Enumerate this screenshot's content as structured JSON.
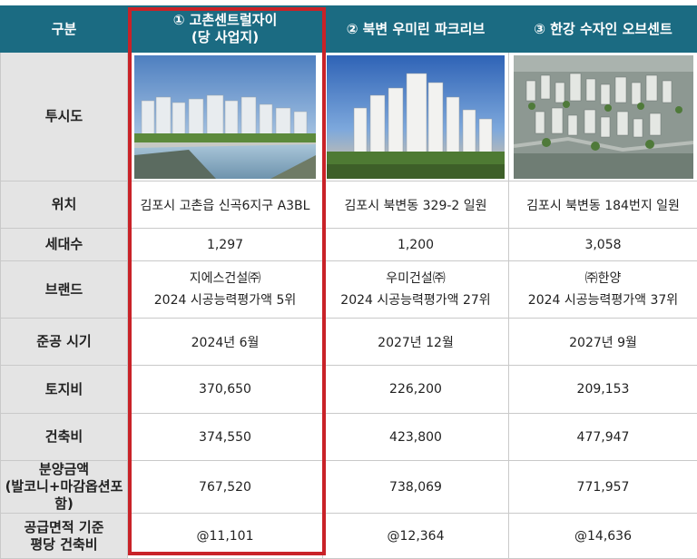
{
  "header": {
    "corner": "구분",
    "col1_line1": "① 고촌센트럴자이",
    "col1_line2": "(당 사업지)",
    "col2": "② 북변 우미린 파크리브",
    "col3": "③ 한강 수자인 오브센트"
  },
  "rows": {
    "render": {
      "label": "투시도"
    },
    "location": {
      "label": "위치",
      "v1": "김포시 고촌읍 신곡6지구 A3BL",
      "v2": "김포시 북변동 329-2 일원",
      "v3": "김포시 북변동 184번지 일원"
    },
    "households": {
      "label": "세대수",
      "v1": "1,297",
      "v2": "1,200",
      "v3": "3,058"
    },
    "brand": {
      "label": "브랜드",
      "v1_line1": "지에스건설㈜",
      "v1_line2": "2024 시공능력평가액 5위",
      "v2_line1": "우미건설㈜",
      "v2_line2": "2024 시공능력평가액 27위",
      "v3_line1": "㈜한양",
      "v3_line2": "2024 시공능력평가액 37위"
    },
    "completion": {
      "label": "준공 시기",
      "v1": "2024년 6월",
      "v2": "2027년 12월",
      "v3": "2027년 9월"
    },
    "land_cost": {
      "label": "토지비",
      "v1": "370,650",
      "v2": "226,200",
      "v3": "209,153"
    },
    "build_cost": {
      "label": "건축비",
      "v1": "374,550",
      "v2": "423,800",
      "v3": "477,947"
    },
    "sale_price": {
      "label_line1": "분양금액",
      "label_line2": "(발코니+마감옵션포함)",
      "v1": "767,520",
      "v2": "738,069",
      "v3": "771,957"
    },
    "per_pyeong": {
      "label_line1": "공급면적 기준",
      "label_line2": "평당 건축비",
      "v1": "@11,101",
      "v2": "@12,364",
      "v3": "@14,636"
    }
  },
  "colors": {
    "header_bg": "#1b6b82",
    "label_bg": "#e4e4e4",
    "highlight": "#c92228"
  }
}
